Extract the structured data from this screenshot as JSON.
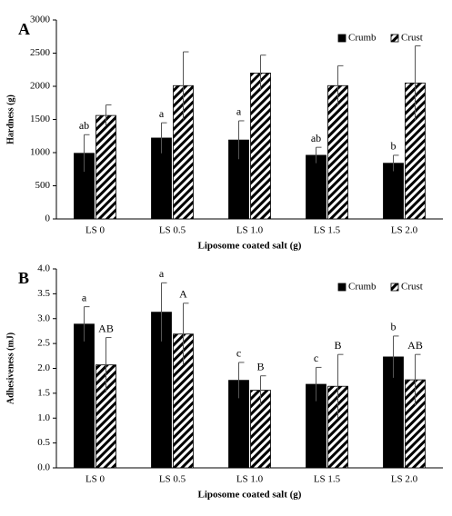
{
  "chart_data": [
    {
      "type": "bar",
      "panel_label": "A",
      "ylabel": "Hardness (g)",
      "xlabel": "Liposome coated salt (g)",
      "categories": [
        "LS 0",
        "LS 0.5",
        "LS 1.0",
        "LS 1.5",
        "LS 2.0"
      ],
      "series": [
        {
          "name": "Crumb",
          "color": "#000000",
          "values": [
            990,
            1220,
            1190,
            960,
            840
          ],
          "errors": [
            280,
            230,
            290,
            120,
            120
          ],
          "letters": [
            "ab",
            "a",
            "a",
            "ab",
            "b"
          ]
        },
        {
          "name": "Crust",
          "color": "#000000",
          "pattern": "hatch",
          "values": [
            1560,
            2010,
            2200,
            2010,
            2050
          ],
          "errors": [
            160,
            510,
            270,
            300,
            560
          ]
        }
      ],
      "ylim": [
        0,
        3000
      ],
      "yticks": [
        0,
        500,
        1000,
        1500,
        2000,
        2500,
        3000
      ],
      "legend": "upper right"
    },
    {
      "type": "bar",
      "panel_label": "B",
      "ylabel": "Adhesiveness (mJ)",
      "xlabel": "Liposome coated salt (g)",
      "categories": [
        "LS 0",
        "LS 0.5",
        "LS 1.0",
        "LS 1.5",
        "LS 2.0"
      ],
      "series": [
        {
          "name": "Crumb",
          "color": "#000000",
          "values": [
            2.89,
            3.13,
            1.76,
            1.68,
            2.23
          ],
          "errors": [
            0.35,
            0.59,
            0.36,
            0.34,
            0.42
          ],
          "letters": [
            "a",
            "a",
            "c",
            "c",
            "b"
          ]
        },
        {
          "name": "Crust",
          "color": "#000000",
          "pattern": "hatch",
          "values": [
            2.07,
            2.69,
            1.56,
            1.64,
            1.77
          ],
          "errors": [
            0.55,
            0.62,
            0.29,
            0.64,
            0.51
          ],
          "letters": [
            "AB",
            "A",
            "B",
            "B",
            "AB"
          ]
        }
      ],
      "ylim": [
        0,
        4
      ],
      "yticks": [
        {
          "value": 0,
          "label": "0.0"
        },
        0.5,
        {
          "value": 1,
          "label": "1.0"
        },
        1.5,
        {
          "value": 2,
          "label": "2.0"
        },
        2.5,
        {
          "value": 3,
          "label": "3.0"
        },
        3.5,
        {
          "value": 4,
          "label": "4.0"
        }
      ],
      "legend": "upper right"
    }
  ]
}
